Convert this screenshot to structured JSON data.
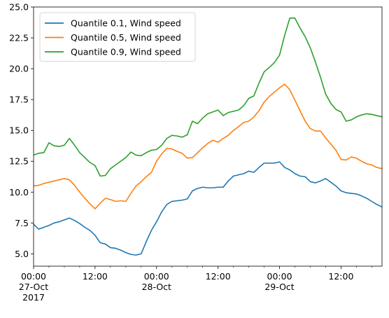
{
  "chart_data": {
    "type": "line",
    "title": "",
    "xlabel": "",
    "ylabel": "",
    "x_unit": "hours",
    "x_range": [
      "2017-10-27 00:00",
      "2017-10-29 20:00"
    ],
    "x_ticks": [
      {
        "hour": 0,
        "lines": [
          "00:00",
          "27-Oct",
          "2017"
        ]
      },
      {
        "hour": 12,
        "lines": [
          "12:00"
        ]
      },
      {
        "hour": 24,
        "lines": [
          "00:00",
          "28-Oct"
        ]
      },
      {
        "hour": 36,
        "lines": [
          "12:00"
        ]
      },
      {
        "hour": 48,
        "lines": [
          "00:00",
          "29-Oct"
        ]
      },
      {
        "hour": 60,
        "lines": [
          "12:00"
        ]
      }
    ],
    "ylim": [
      4.0,
      25.0
    ],
    "y_ticks": [
      5.0,
      7.5,
      10.0,
      12.5,
      15.0,
      17.5,
      20.0,
      22.5,
      25.0
    ],
    "y_tick_labels": [
      "5.0",
      "7.5",
      "10.0",
      "12.5",
      "15.0",
      "17.5",
      "20.0",
      "22.5",
      "25.0"
    ],
    "grid": false,
    "legend_position": "upper-left",
    "x": [
      0,
      1,
      2,
      3,
      4,
      5,
      6,
      7,
      8,
      9,
      10,
      11,
      12,
      13,
      14,
      15,
      16,
      17,
      18,
      19,
      20,
      21,
      22,
      23,
      24,
      25,
      26,
      27,
      28,
      29,
      30,
      31,
      32,
      33,
      34,
      35,
      36,
      37,
      38,
      39,
      40,
      41,
      42,
      43,
      44,
      45,
      46,
      47,
      48,
      49,
      50,
      51,
      52,
      53,
      54,
      55,
      56,
      57,
      58,
      59,
      60,
      61,
      62,
      63,
      64,
      65,
      66,
      67,
      68
    ],
    "series": [
      {
        "name": "Quantile 0.1, Wind speed",
        "color": "#1f77b4",
        "values": [
          7.4,
          7.0,
          7.15,
          7.3,
          7.5,
          7.6,
          7.75,
          7.9,
          7.7,
          7.45,
          7.15,
          6.9,
          6.5,
          5.9,
          5.8,
          5.5,
          5.45,
          5.3,
          5.1,
          4.95,
          4.9,
          5.0,
          6.0,
          6.9,
          7.6,
          8.4,
          9.0,
          9.25,
          9.3,
          9.35,
          9.45,
          10.1,
          10.3,
          10.4,
          10.35,
          10.35,
          10.4,
          10.4,
          10.9,
          11.3,
          11.4,
          11.5,
          11.7,
          11.6,
          12.0,
          12.35,
          12.35,
          12.35,
          12.45,
          12.0,
          11.8,
          11.5,
          11.3,
          11.25,
          10.85,
          10.75,
          10.9,
          11.1,
          10.8,
          10.5,
          10.1,
          9.95,
          9.9,
          9.85,
          9.7,
          9.5,
          9.25,
          9.0,
          8.8
        ]
      },
      {
        "name": "Quantile 0.5, Wind speed",
        "color": "#ff7f0e",
        "values": [
          10.5,
          10.55,
          10.7,
          10.8,
          10.9,
          11.0,
          11.1,
          11.0,
          10.55,
          10.0,
          9.5,
          9.05,
          8.65,
          9.1,
          9.5,
          9.4,
          9.25,
          9.3,
          9.25,
          9.9,
          10.5,
          10.85,
          11.25,
          11.6,
          12.5,
          13.1,
          13.55,
          13.5,
          13.3,
          13.15,
          12.75,
          12.8,
          13.2,
          13.6,
          13.95,
          14.2,
          14.05,
          14.35,
          14.6,
          15.0,
          15.3,
          15.65,
          15.75,
          16.1,
          16.6,
          17.3,
          17.75,
          18.1,
          18.45,
          18.75,
          18.3,
          17.45,
          16.6,
          15.75,
          15.15,
          14.95,
          14.95,
          14.4,
          13.9,
          13.4,
          12.65,
          12.6,
          12.85,
          12.75,
          12.5,
          12.3,
          12.2,
          12.0,
          11.9
        ]
      },
      {
        "name": "Quantile 0.9, Wind speed",
        "color": "#2ca02c",
        "values": [
          13.0,
          13.15,
          13.2,
          14.0,
          13.75,
          13.7,
          13.8,
          14.35,
          13.8,
          13.2,
          12.8,
          12.4,
          12.15,
          11.3,
          11.35,
          11.9,
          12.2,
          12.5,
          12.8,
          13.25,
          13.0,
          12.95,
          13.2,
          13.4,
          13.45,
          13.8,
          14.35,
          14.6,
          14.55,
          14.45,
          14.65,
          15.75,
          15.55,
          16.0,
          16.35,
          16.5,
          16.65,
          16.2,
          16.45,
          16.55,
          16.65,
          17.0,
          17.6,
          17.8,
          18.85,
          19.75,
          20.1,
          20.5,
          21.1,
          22.7,
          24.1,
          24.1,
          23.3,
          22.6,
          21.7,
          20.55,
          19.3,
          17.95,
          17.2,
          16.7,
          16.5,
          15.75,
          15.85,
          16.1,
          16.25,
          16.35,
          16.3,
          16.2,
          16.1
        ]
      }
    ]
  }
}
